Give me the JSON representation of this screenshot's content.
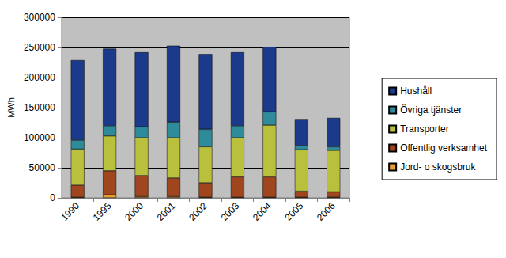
{
  "chart_data": {
    "type": "bar",
    "stacked": true,
    "grid": true,
    "legend": "right",
    "y_label": "MWh",
    "categories": [
      "1990",
      "1995",
      "2000",
      "2001",
      "2002",
      "2003",
      "2004",
      "2005",
      "2006"
    ],
    "ylim": [
      0,
      300000
    ],
    "yticks": [
      0,
      50000,
      100000,
      150000,
      200000,
      250000,
      300000
    ],
    "series": [
      {
        "name": "Jord- o skogsbruk",
        "color": "#E8A030",
        "values": [
          1000,
          5000,
          2000,
          2000,
          1000,
          1000,
          1000,
          1000,
          1000
        ]
      },
      {
        "name": "Offentlig verksamhet",
        "color": "#A0461E",
        "values": [
          20000,
          40000,
          35000,
          31000,
          24000,
          34000,
          34000,
          10000,
          9000
        ]
      },
      {
        "name": "Transporter",
        "color": "#B8C03C",
        "values": [
          60000,
          58000,
          63000,
          67000,
          60000,
          65000,
          86000,
          69000,
          69000
        ]
      },
      {
        "name": "Övriga tjänster",
        "color": "#2E8B9A",
        "values": [
          15000,
          17000,
          18000,
          26000,
          29000,
          20000,
          22000,
          7000,
          6000
        ]
      },
      {
        "name": "Hushåll",
        "color": "#1C3A8C",
        "values": [
          133000,
          128000,
          124000,
          127000,
          125000,
          122000,
          108000,
          44000,
          48000
        ]
      }
    ]
  }
}
